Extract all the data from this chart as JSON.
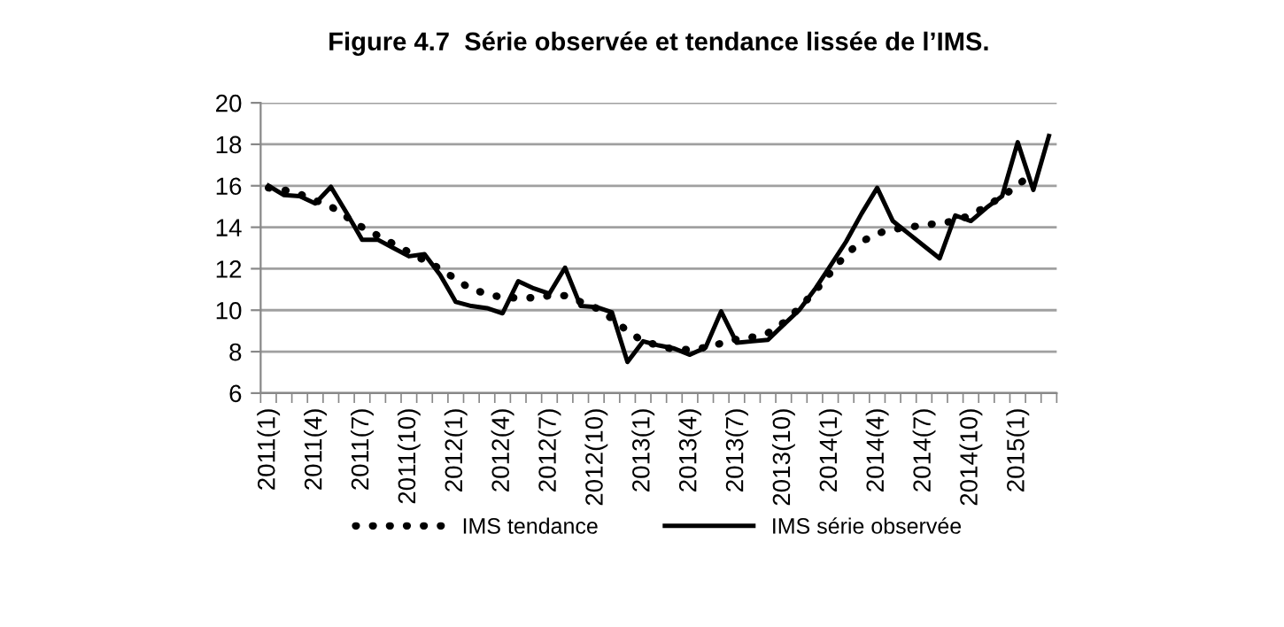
{
  "chart_data": {
    "type": "line",
    "title": "Figure 4.7  Série observée et tendance lissée de l’IMS.",
    "categories": [
      "2011(1)",
      null,
      null,
      "2011(4)",
      null,
      null,
      "2011(7)",
      null,
      null,
      "2011(10)",
      null,
      null,
      "2012(1)",
      null,
      null,
      "2012(4)",
      null,
      null,
      "2012(7)",
      null,
      null,
      "2012(10)",
      null,
      null,
      "2013(1)",
      null,
      null,
      "2013(4)",
      null,
      null,
      "2013(7)",
      null,
      null,
      "2013(10)",
      null,
      null,
      "2014(1)",
      null,
      null,
      "2014(4)",
      null,
      null,
      "2014(7)",
      null,
      null,
      "2014(10)",
      null,
      null,
      "2015(1)",
      null,
      null
    ],
    "series": [
      {
        "name": "IMS tendance",
        "color": "#000000",
        "line_style": "dotted",
        "values": [
          15.9,
          15.8,
          15.6,
          15.3,
          15.0,
          14.5,
          14.0,
          13.6,
          13.2,
          12.8,
          12.4,
          12.0,
          11.5,
          11.0,
          10.8,
          10.6,
          10.6,
          10.6,
          10.7,
          10.7,
          10.4,
          10.1,
          9.6,
          9.0,
          8.5,
          8.3,
          8.1,
          8.1,
          8.2,
          8.4,
          8.6,
          8.7,
          8.9,
          9.4,
          10.1,
          10.9,
          11.8,
          12.7,
          13.3,
          13.7,
          13.9,
          14.0,
          14.1,
          14.2,
          14.3,
          14.6,
          15.0,
          15.5,
          16.0,
          16.7,
          null
        ]
      },
      {
        "name": "IMS série observée",
        "color": "#000000",
        "line_style": "solid",
        "values": [
          16.0,
          15.55,
          15.5,
          15.15,
          15.95,
          14.7,
          13.4,
          13.4,
          13.0,
          12.6,
          12.7,
          11.7,
          10.4,
          10.2,
          10.1,
          9.85,
          11.4,
          11.05,
          10.8,
          12.05,
          10.2,
          10.15,
          9.9,
          7.5,
          8.5,
          8.3,
          8.15,
          7.85,
          8.2,
          9.94,
          8.43,
          8.5,
          8.57,
          9.3,
          10.0,
          11.0,
          12.14,
          13.3,
          14.66,
          15.9,
          14.3,
          13.7,
          13.1,
          12.5,
          14.57,
          14.3,
          14.94,
          15.5,
          18.1,
          15.8,
          18.4
        ]
      }
    ],
    "ylim": [
      6,
      20
    ],
    "yticks": [
      6,
      8,
      10,
      12,
      14,
      16,
      18,
      20
    ],
    "grid": "y",
    "legend": "bottom",
    "marker": "none"
  }
}
